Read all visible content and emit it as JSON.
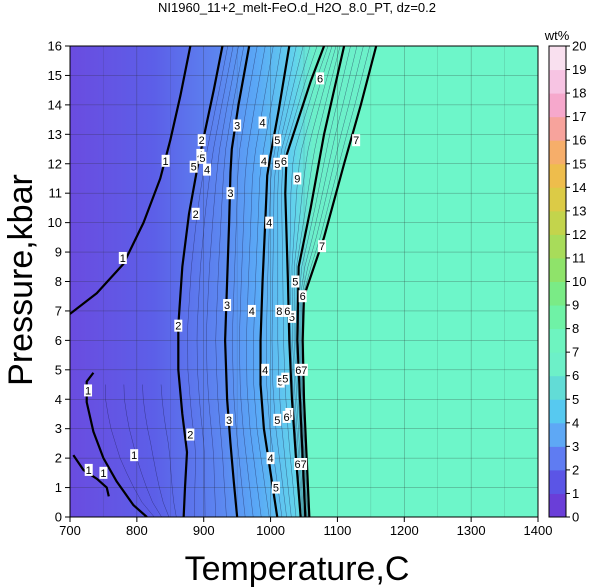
{
  "chart_data": {
    "type": "heatmap",
    "title": "NI1960_11+2_melt-FeO.d_H2O_8.0_PT, dz=0.2",
    "xlabel": "Temperature,C",
    "ylabel": "Pressure,kbar",
    "xlim": [
      700,
      1400
    ],
    "ylim": [
      0,
      16
    ],
    "x_ticks": [
      700,
      800,
      900,
      1000,
      1100,
      1200,
      1300,
      1400
    ],
    "y_ticks": [
      0,
      1,
      2,
      3,
      4,
      5,
      6,
      7,
      8,
      9,
      10,
      11,
      12,
      13,
      14,
      15,
      16
    ],
    "grid": true,
    "colorbar": {
      "title": "wt%",
      "min": 0,
      "max": 20,
      "ticks": [
        0,
        1,
        2,
        3,
        4,
        5,
        6,
        7,
        8,
        9,
        10,
        11,
        12,
        13,
        14,
        15,
        16,
        17,
        18,
        19,
        20
      ],
      "colors": [
        "#6a3ed8",
        "#5b55e6",
        "#5f7cf2",
        "#5ea8f5",
        "#57c9f0",
        "#62dcd6",
        "#6df0c8",
        "#6ef4c0",
        "#6ff2a6",
        "#7aeb86",
        "#8fe36a",
        "#a8dc5a",
        "#c3d44c",
        "#dccb46",
        "#eebd4c",
        "#f6ae6a",
        "#f7a39c",
        "#f6a8cc",
        "#f7c4e3",
        "#f9e0ef"
      ]
    },
    "saturated_region": {
      "value": 8.0,
      "color": "#6df6c9"
    },
    "contour_lines": [
      {
        "level": 1,
        "points": [
          [
            700,
            6.9
          ],
          [
            740,
            7.6
          ],
          [
            780,
            8.6
          ],
          [
            810,
            10.0
          ],
          [
            835,
            11.5
          ],
          [
            850,
            12.8
          ],
          [
            865,
            14.3
          ],
          [
            880,
            16.0
          ]
        ]
      },
      {
        "level": 1,
        "points": [
          [
            735,
            4.9
          ],
          [
            725,
            4.6
          ],
          [
            725,
            3.9
          ],
          [
            735,
            2.9
          ],
          [
            750,
            2.0
          ],
          [
            770,
            1.2
          ],
          [
            795,
            0.4
          ],
          [
            815,
            0.0
          ]
        ]
      },
      {
        "level": 1,
        "points": [
          [
            705,
            2.1
          ],
          [
            720,
            1.6
          ],
          [
            740,
            1.3
          ],
          [
            755,
            1.0
          ],
          [
            758,
            0.7
          ]
        ]
      },
      {
        "level": 2,
        "points": [
          [
            870,
            0.0
          ],
          [
            872,
            1.0
          ],
          [
            875,
            2.2
          ],
          [
            868,
            3.5
          ],
          [
            862,
            5.0
          ],
          [
            862,
            6.5
          ],
          [
            868,
            8.5
          ],
          [
            878,
            10.3
          ],
          [
            890,
            11.8
          ],
          [
            900,
            12.9
          ],
          [
            915,
            14.5
          ],
          [
            928,
            16.0
          ]
        ]
      },
      {
        "level": 3,
        "points": [
          [
            950,
            0.0
          ],
          [
            945,
            1.2
          ],
          [
            940,
            2.5
          ],
          [
            935,
            4.0
          ],
          [
            932,
            6.0
          ],
          [
            935,
            8.0
          ],
          [
            938,
            10.0
          ],
          [
            940,
            11.7
          ],
          [
            942,
            12.5
          ],
          [
            952,
            14.0
          ],
          [
            968,
            16.0
          ]
        ]
      },
      {
        "level": 4,
        "points": [
          [
            1010,
            0.0
          ],
          [
            1000,
            1.5
          ],
          [
            990,
            3.0
          ],
          [
            985,
            4.5
          ],
          [
            985,
            6.0
          ],
          [
            988,
            8.0
          ],
          [
            992,
            10.0
          ],
          [
            995,
            11.6
          ],
          [
            1000,
            12.3
          ],
          [
            1012,
            13.8
          ],
          [
            1028,
            16.0
          ]
        ]
      },
      {
        "level": 5,
        "points": [
          [
            1045,
            0.0
          ],
          [
            1038,
            2.0
          ],
          [
            1032,
            4.0
          ],
          [
            1028,
            6.0
          ],
          [
            1026,
            8.0
          ],
          [
            1022,
            11.0
          ],
          [
            1024,
            12.3
          ],
          [
            1060,
            14.8
          ],
          [
            1080,
            16.0
          ]
        ]
      },
      {
        "level": 6,
        "points": [
          [
            1052,
            0.0
          ],
          [
            1048,
            2.0
          ],
          [
            1044,
            4.0
          ],
          [
            1040,
            6.0
          ],
          [
            1042,
            8.5
          ],
          [
            1060,
            10.5
          ],
          [
            1080,
            13.0
          ],
          [
            1100,
            15.0
          ],
          [
            1110,
            16.0
          ]
        ]
      },
      {
        "level": 7,
        "points": [
          [
            1058,
            0.0
          ],
          [
            1054,
            2.0
          ],
          [
            1050,
            4.0
          ],
          [
            1048,
            6.0
          ],
          [
            1050,
            7.5
          ],
          [
            1080,
            9.5
          ],
          [
            1110,
            12.0
          ],
          [
            1135,
            14.0
          ],
          [
            1158,
            16.0
          ]
        ]
      }
    ],
    "contour_labels": [
      {
        "text": "1",
        "x": 843,
        "y": 12.1
      },
      {
        "text": "1",
        "x": 779,
        "y": 8.8
      },
      {
        "text": "1",
        "x": 727,
        "y": 4.3
      },
      {
        "text": "1",
        "x": 796,
        "y": 2.1
      },
      {
        "text": "1",
        "x": 750,
        "y": 1.5
      },
      {
        "text": "1",
        "x": 728,
        "y": 1.6
      },
      {
        "text": "2",
        "x": 897,
        "y": 12.8
      },
      {
        "text": "2",
        "x": 888,
        "y": 10.3
      },
      {
        "text": "2",
        "x": 862,
        "y": 6.5
      },
      {
        "text": "2",
        "x": 880,
        "y": 2.8
      },
      {
        "text": "3",
        "x": 950,
        "y": 13.3
      },
      {
        "text": "3",
        "x": 940,
        "y": 11.0
      },
      {
        "text": "3",
        "x": 935,
        "y": 7.2
      },
      {
        "text": "3",
        "x": 938,
        "y": 3.3
      },
      {
        "text": "4",
        "x": 988,
        "y": 13.4
      },
      {
        "text": "4",
        "x": 998,
        "y": 10.0
      },
      {
        "text": "4",
        "x": 972,
        "y": 7.0
      },
      {
        "text": "4",
        "x": 992,
        "y": 5.0
      },
      {
        "text": "4",
        "x": 1000,
        "y": 2.0
      },
      {
        "text": "4",
        "x": 1028,
        "y": 3.5
      },
      {
        "text": "4",
        "x": 895,
        "y": 12.3
      },
      {
        "text": "4",
        "x": 905,
        "y": 11.8
      },
      {
        "text": "4",
        "x": 990,
        "y": 12.1
      },
      {
        "text": "5",
        "x": 1010,
        "y": 12.8
      },
      {
        "text": "5",
        "x": 1037,
        "y": 8.0
      },
      {
        "text": "5",
        "x": 1015,
        "y": 4.6
      },
      {
        "text": "5",
        "x": 1010,
        "y": 3.3
      },
      {
        "text": "5",
        "x": 1008,
        "y": 1.0
      },
      {
        "text": "5",
        "x": 1032,
        "y": 6.8
      },
      {
        "text": "5",
        "x": 898,
        "y": 12.2
      },
      {
        "text": "5",
        "x": 885,
        "y": 11.9
      },
      {
        "text": "5",
        "x": 1010,
        "y": 12.0
      },
      {
        "text": "5",
        "x": 1022,
        "y": 4.7
      },
      {
        "text": "6",
        "x": 1074,
        "y": 14.9
      },
      {
        "text": "6",
        "x": 1048,
        "y": 7.5
      },
      {
        "text": "6",
        "x": 1024,
        "y": 3.4
      },
      {
        "text": "6",
        "x": 1025,
        "y": 7.0
      },
      {
        "text": "6",
        "x": 1020,
        "y": 12.1
      },
      {
        "text": "67",
        "x": 1046,
        "y": 5.0
      },
      {
        "text": "67",
        "x": 1045,
        "y": 1.8
      },
      {
        "text": "9",
        "x": 1040,
        "y": 11.5
      },
      {
        "text": "7",
        "x": 1128,
        "y": 12.8
      },
      {
        "text": "7",
        "x": 1077,
        "y": 9.2
      },
      {
        "text": "8",
        "x": 1013,
        "y": 7.0
      }
    ]
  }
}
